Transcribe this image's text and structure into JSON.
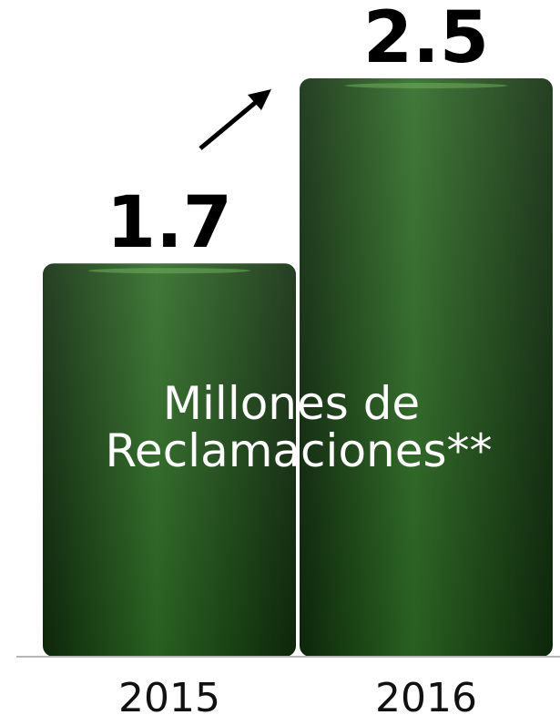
{
  "chart_data": {
    "type": "bar",
    "categories": [
      "2015",
      "2016"
    ],
    "values": [
      1.7,
      2.5
    ],
    "value_labels": [
      "1.7",
      "2.5"
    ],
    "annotation": [
      "Millones de",
      "Reclamaciones**"
    ],
    "title": "",
    "xlabel": "",
    "ylabel": "",
    "ylim": [
      0,
      2.5
    ],
    "grid": false,
    "legend": "none",
    "trend_arrow": "up",
    "colors": {
      "bar_dark": "#0e2a0b",
      "bar_mid": "#1c4f16",
      "bar_light": "#2d6a24",
      "axis": "#b5b5b5",
      "annotation_text": "#ffffff",
      "label_text": "#000000"
    }
  }
}
